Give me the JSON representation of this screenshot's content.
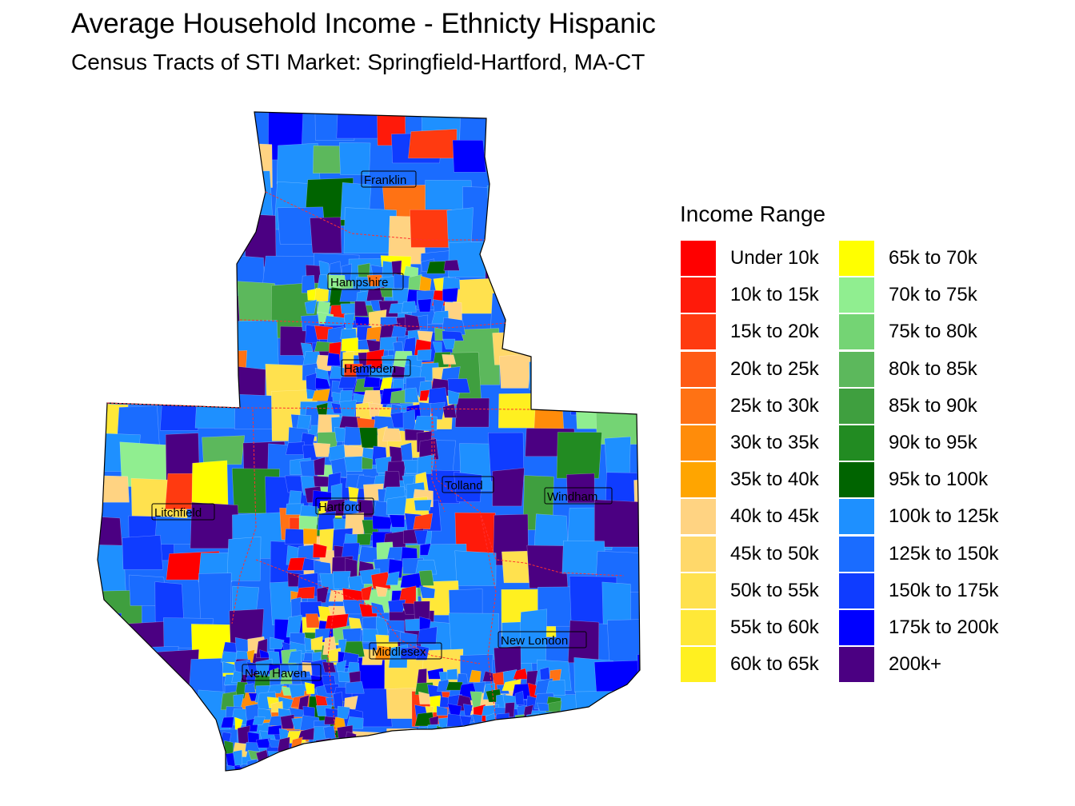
{
  "title": "Average Household Income - Ethnicty Hispanic",
  "subtitle": "Census Tracts of STI Market: Springfield-Hartford, MA-CT",
  "legend": {
    "title": "Income Range",
    "items": [
      {
        "label": "Under 10k",
        "color": "#ff0000"
      },
      {
        "label": "10k to 15k",
        "color": "#ff1a0a"
      },
      {
        "label": "15k to 20k",
        "color": "#ff3a10"
      },
      {
        "label": "20k to 25k",
        "color": "#ff5a14"
      },
      {
        "label": "25k to 30k",
        "color": "#ff7214"
      },
      {
        "label": "30k to 35k",
        "color": "#ff8c0a"
      },
      {
        "label": "35k to 40k",
        "color": "#ffa500"
      },
      {
        "label": "40k to 45k",
        "color": "#ffd382"
      },
      {
        "label": "45k to 50k",
        "color": "#ffd86a"
      },
      {
        "label": "50k to 55k",
        "color": "#ffe14e"
      },
      {
        "label": "55k to 60k",
        "color": "#ffe838"
      },
      {
        "label": "60k to 65k",
        "color": "#fff020"
      },
      {
        "label": "65k to 70k",
        "color": "#ffff00"
      },
      {
        "label": "70k to 75k",
        "color": "#90ee90"
      },
      {
        "label": "75k to 80k",
        "color": "#74d474"
      },
      {
        "label": "80k to 85k",
        "color": "#5cb85c"
      },
      {
        "label": "85k to 90k",
        "color": "#3f9f3f"
      },
      {
        "label": "90k to 95k",
        "color": "#228b22"
      },
      {
        "label": "95k to 100k",
        "color": "#006400"
      },
      {
        "label": "100k to 125k",
        "color": "#1e90ff"
      },
      {
        "label": "125k to 150k",
        "color": "#1a6cff"
      },
      {
        "label": "150k to 175k",
        "color": "#0f3cff"
      },
      {
        "label": "175k to 200k",
        "color": "#0000ff"
      },
      {
        "label": "200k+",
        "color": "#4b0082"
      }
    ]
  },
  "counties": [
    "Franklin",
    "Hampshire",
    "Hampden",
    "Litchfield",
    "Hartford",
    "Tolland",
    "Windham",
    "Middlesex",
    "New London",
    "New Haven"
  ]
}
